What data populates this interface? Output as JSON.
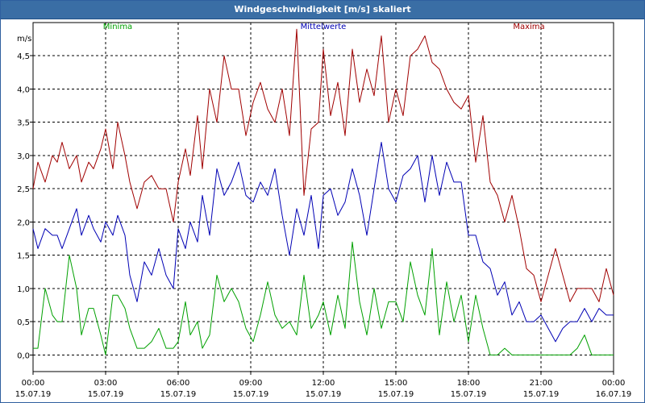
{
  "window": {
    "title": "Windgeschwindigkeit [m/s] skaliert"
  },
  "chart_data": {
    "type": "line",
    "title": "Windgeschwindigkeit [m/s] skaliert",
    "ylabel": "m/s",
    "xlabel": "",
    "ylim": [
      -0.25,
      5.0
    ],
    "xlim": [
      0,
      24
    ],
    "grid": true,
    "legend_placement": "top",
    "y_ticks": [
      {
        "value": 0.0,
        "label": "0,0"
      },
      {
        "value": 0.5,
        "label": "0,5"
      },
      {
        "value": 1.0,
        "label": "1,0"
      },
      {
        "value": 1.5,
        "label": "1,5"
      },
      {
        "value": 2.0,
        "label": "2,0"
      },
      {
        "value": 2.5,
        "label": "2,5"
      },
      {
        "value": 3.0,
        "label": "3,0"
      },
      {
        "value": 3.5,
        "label": "3,5"
      },
      {
        "value": 4.0,
        "label": "4,0"
      },
      {
        "value": 4.5,
        "label": "4,5"
      }
    ],
    "x_ticks": [
      {
        "value": 0,
        "time": "00:00",
        "date": "15.07.19"
      },
      {
        "value": 3,
        "time": "03:00",
        "date": "15.07.19"
      },
      {
        "value": 6,
        "time": "06:00",
        "date": "15.07.19"
      },
      {
        "value": 9,
        "time": "09:00",
        "date": "15.07.19"
      },
      {
        "value": 12,
        "time": "12:00",
        "date": "15.07.19"
      },
      {
        "value": 15,
        "time": "15:00",
        "date": "15.07.19"
      },
      {
        "value": 18,
        "time": "18:00",
        "date": "15.07.19"
      },
      {
        "value": 21,
        "time": "21:00",
        "date": "15.07.19"
      },
      {
        "value": 24,
        "time": "00:00",
        "date": "16.07.19"
      }
    ],
    "series": [
      {
        "name": "Minima",
        "color": "#00a000",
        "points": [
          [
            0,
            0.1
          ],
          [
            0.2,
            0.1
          ],
          [
            0.5,
            1.0
          ],
          [
            0.8,
            0.6
          ],
          [
            1.0,
            0.5
          ],
          [
            1.2,
            0.5
          ],
          [
            1.5,
            1.5
          ],
          [
            1.8,
            1.0
          ],
          [
            2.0,
            0.3
          ],
          [
            2.3,
            0.7
          ],
          [
            2.5,
            0.7
          ],
          [
            2.8,
            0.3
          ],
          [
            3.0,
            0.0
          ],
          [
            3.3,
            0.9
          ],
          [
            3.5,
            0.9
          ],
          [
            3.8,
            0.7
          ],
          [
            4.0,
            0.4
          ],
          [
            4.3,
            0.1
          ],
          [
            4.6,
            0.1
          ],
          [
            4.9,
            0.2
          ],
          [
            5.2,
            0.4
          ],
          [
            5.5,
            0.1
          ],
          [
            5.8,
            0.1
          ],
          [
            6.0,
            0.2
          ],
          [
            6.3,
            0.8
          ],
          [
            6.5,
            0.3
          ],
          [
            6.8,
            0.5
          ],
          [
            7.0,
            0.1
          ],
          [
            7.3,
            0.3
          ],
          [
            7.6,
            1.2
          ],
          [
            7.9,
            0.8
          ],
          [
            8.2,
            1.0
          ],
          [
            8.5,
            0.8
          ],
          [
            8.8,
            0.4
          ],
          [
            9.1,
            0.2
          ],
          [
            9.4,
            0.6
          ],
          [
            9.7,
            1.1
          ],
          [
            10.0,
            0.6
          ],
          [
            10.3,
            0.4
          ],
          [
            10.6,
            0.5
          ],
          [
            10.9,
            0.3
          ],
          [
            11.2,
            1.2
          ],
          [
            11.5,
            0.4
          ],
          [
            11.8,
            0.6
          ],
          [
            12.0,
            0.8
          ],
          [
            12.3,
            0.3
          ],
          [
            12.6,
            0.9
          ],
          [
            12.9,
            0.4
          ],
          [
            13.2,
            1.7
          ],
          [
            13.5,
            0.8
          ],
          [
            13.8,
            0.3
          ],
          [
            14.1,
            1.0
          ],
          [
            14.4,
            0.4
          ],
          [
            14.7,
            0.8
          ],
          [
            15.0,
            0.8
          ],
          [
            15.3,
            0.5
          ],
          [
            15.6,
            1.4
          ],
          [
            15.9,
            0.9
          ],
          [
            16.2,
            0.6
          ],
          [
            16.5,
            1.6
          ],
          [
            16.8,
            0.3
          ],
          [
            17.1,
            1.1
          ],
          [
            17.4,
            0.5
          ],
          [
            17.7,
            0.9
          ],
          [
            18.0,
            0.2
          ],
          [
            18.3,
            0.9
          ],
          [
            18.6,
            0.4
          ],
          [
            18.9,
            0.0
          ],
          [
            19.2,
            0.0
          ],
          [
            19.5,
            0.1
          ],
          [
            19.8,
            0.0
          ],
          [
            20.1,
            0.0
          ],
          [
            20.4,
            0.0
          ],
          [
            20.7,
            0.0
          ],
          [
            21.0,
            0.0
          ],
          [
            21.3,
            0.0
          ],
          [
            21.6,
            0.0
          ],
          [
            21.9,
            0.0
          ],
          [
            22.2,
            0.0
          ],
          [
            22.5,
            0.1
          ],
          [
            22.8,
            0.3
          ],
          [
            23.1,
            0.0
          ],
          [
            23.4,
            0.0
          ],
          [
            23.7,
            0.0
          ],
          [
            24.0,
            0.0
          ]
        ]
      },
      {
        "name": "Mittelwerte",
        "color": "#0000b4",
        "points": [
          [
            0,
            1.9
          ],
          [
            0.2,
            1.6
          ],
          [
            0.5,
            1.9
          ],
          [
            0.8,
            1.8
          ],
          [
            1.0,
            1.8
          ],
          [
            1.2,
            1.6
          ],
          [
            1.5,
            1.9
          ],
          [
            1.8,
            2.2
          ],
          [
            2.0,
            1.8
          ],
          [
            2.3,
            2.1
          ],
          [
            2.5,
            1.9
          ],
          [
            2.8,
            1.7
          ],
          [
            3.0,
            2.0
          ],
          [
            3.3,
            1.8
          ],
          [
            3.5,
            2.1
          ],
          [
            3.8,
            1.8
          ],
          [
            4.0,
            1.2
          ],
          [
            4.3,
            0.8
          ],
          [
            4.6,
            1.4
          ],
          [
            4.9,
            1.2
          ],
          [
            5.2,
            1.6
          ],
          [
            5.5,
            1.2
          ],
          [
            5.8,
            1.0
          ],
          [
            6.0,
            1.9
          ],
          [
            6.3,
            1.6
          ],
          [
            6.5,
            2.0
          ],
          [
            6.8,
            1.7
          ],
          [
            7.0,
            2.4
          ],
          [
            7.3,
            1.8
          ],
          [
            7.6,
            2.8
          ],
          [
            7.9,
            2.4
          ],
          [
            8.2,
            2.6
          ],
          [
            8.5,
            2.9
          ],
          [
            8.8,
            2.4
          ],
          [
            9.1,
            2.3
          ],
          [
            9.4,
            2.6
          ],
          [
            9.7,
            2.4
          ],
          [
            10.0,
            2.8
          ],
          [
            10.3,
            2.1
          ],
          [
            10.6,
            1.5
          ],
          [
            10.9,
            2.2
          ],
          [
            11.2,
            1.8
          ],
          [
            11.5,
            2.4
          ],
          [
            11.8,
            1.6
          ],
          [
            12.0,
            2.4
          ],
          [
            12.3,
            2.5
          ],
          [
            12.6,
            2.1
          ],
          [
            12.9,
            2.3
          ],
          [
            13.2,
            2.8
          ],
          [
            13.5,
            2.4
          ],
          [
            13.8,
            1.8
          ],
          [
            14.1,
            2.5
          ],
          [
            14.4,
            3.2
          ],
          [
            14.7,
            2.5
          ],
          [
            15.0,
            2.3
          ],
          [
            15.3,
            2.7
          ],
          [
            15.6,
            2.8
          ],
          [
            15.9,
            3.0
          ],
          [
            16.2,
            2.3
          ],
          [
            16.5,
            3.0
          ],
          [
            16.8,
            2.4
          ],
          [
            17.1,
            2.9
          ],
          [
            17.4,
            2.6
          ],
          [
            17.7,
            2.6
          ],
          [
            18.0,
            1.8
          ],
          [
            18.3,
            1.8
          ],
          [
            18.6,
            1.4
          ],
          [
            18.9,
            1.3
          ],
          [
            19.2,
            0.9
          ],
          [
            19.5,
            1.1
          ],
          [
            19.8,
            0.6
          ],
          [
            20.1,
            0.8
          ],
          [
            20.4,
            0.5
          ],
          [
            20.7,
            0.5
          ],
          [
            21.0,
            0.6
          ],
          [
            21.3,
            0.4
          ],
          [
            21.6,
            0.2
          ],
          [
            21.9,
            0.4
          ],
          [
            22.2,
            0.5
          ],
          [
            22.5,
            0.5
          ],
          [
            22.8,
            0.7
          ],
          [
            23.1,
            0.5
          ],
          [
            23.4,
            0.7
          ],
          [
            23.7,
            0.6
          ],
          [
            24.0,
            0.6
          ]
        ]
      },
      {
        "name": "Maxima",
        "color": "#a00000",
        "points": [
          [
            0,
            2.5
          ],
          [
            0.2,
            2.9
          ],
          [
            0.5,
            2.6
          ],
          [
            0.8,
            3.0
          ],
          [
            1.0,
            2.9
          ],
          [
            1.2,
            3.2
          ],
          [
            1.5,
            2.8
          ],
          [
            1.8,
            3.0
          ],
          [
            2.0,
            2.6
          ],
          [
            2.3,
            2.9
          ],
          [
            2.5,
            2.8
          ],
          [
            2.8,
            3.1
          ],
          [
            3.0,
            3.4
          ],
          [
            3.3,
            2.8
          ],
          [
            3.5,
            3.5
          ],
          [
            3.8,
            3.0
          ],
          [
            4.0,
            2.6
          ],
          [
            4.3,
            2.2
          ],
          [
            4.6,
            2.6
          ],
          [
            4.9,
            2.7
          ],
          [
            5.2,
            2.5
          ],
          [
            5.5,
            2.5
          ],
          [
            5.8,
            2.0
          ],
          [
            6.0,
            2.6
          ],
          [
            6.3,
            3.1
          ],
          [
            6.5,
            2.7
          ],
          [
            6.8,
            3.6
          ],
          [
            7.0,
            2.8
          ],
          [
            7.3,
            4.0
          ],
          [
            7.6,
            3.5
          ],
          [
            7.9,
            4.5
          ],
          [
            8.2,
            4.0
          ],
          [
            8.5,
            4.0
          ],
          [
            8.8,
            3.3
          ],
          [
            9.1,
            3.8
          ],
          [
            9.4,
            4.1
          ],
          [
            9.7,
            3.7
          ],
          [
            10.0,
            3.5
          ],
          [
            10.3,
            4.0
          ],
          [
            10.6,
            3.3
          ],
          [
            10.9,
            4.9
          ],
          [
            11.2,
            2.4
          ],
          [
            11.5,
            3.4
          ],
          [
            11.8,
            3.5
          ],
          [
            12.0,
            4.6
          ],
          [
            12.3,
            3.6
          ],
          [
            12.6,
            4.1
          ],
          [
            12.9,
            3.3
          ],
          [
            13.2,
            4.6
          ],
          [
            13.5,
            3.8
          ],
          [
            13.8,
            4.3
          ],
          [
            14.1,
            3.9
          ],
          [
            14.4,
            4.8
          ],
          [
            14.7,
            3.5
          ],
          [
            15.0,
            4.0
          ],
          [
            15.3,
            3.6
          ],
          [
            15.6,
            4.5
          ],
          [
            15.9,
            4.6
          ],
          [
            16.2,
            4.8
          ],
          [
            16.5,
            4.4
          ],
          [
            16.8,
            4.3
          ],
          [
            17.1,
            4.0
          ],
          [
            17.4,
            3.8
          ],
          [
            17.7,
            3.7
          ],
          [
            18.0,
            3.9
          ],
          [
            18.3,
            2.9
          ],
          [
            18.6,
            3.6
          ],
          [
            18.9,
            2.6
          ],
          [
            19.2,
            2.4
          ],
          [
            19.5,
            2.0
          ],
          [
            19.8,
            2.4
          ],
          [
            20.1,
            1.9
          ],
          [
            20.4,
            1.3
          ],
          [
            20.7,
            1.2
          ],
          [
            21.0,
            0.8
          ],
          [
            21.3,
            1.2
          ],
          [
            21.6,
            1.6
          ],
          [
            21.9,
            1.2
          ],
          [
            22.2,
            0.8
          ],
          [
            22.5,
            1.0
          ],
          [
            22.8,
            1.0
          ],
          [
            23.1,
            1.0
          ],
          [
            23.4,
            0.8
          ],
          [
            23.7,
            1.3
          ],
          [
            24.0,
            0.9
          ]
        ]
      }
    ]
  }
}
